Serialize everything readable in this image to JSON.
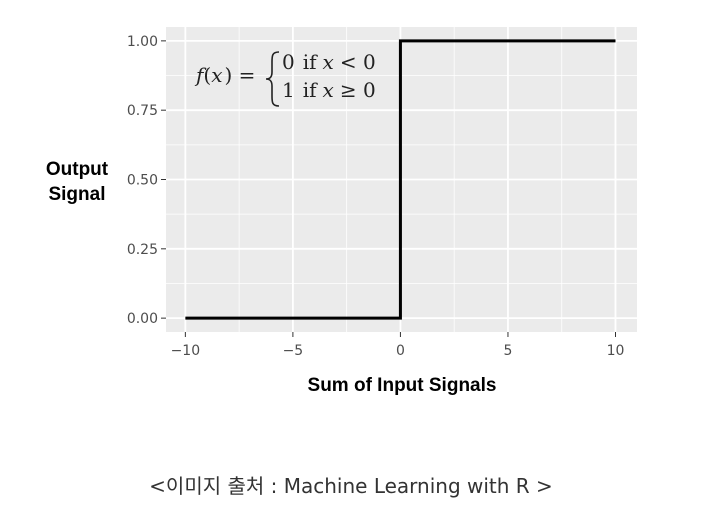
{
  "chart_data": {
    "type": "line",
    "title": "",
    "xlabel": "Sum of Input Signals",
    "ylabel": [
      "Output",
      "Signal"
    ],
    "xlim": [
      -10.9,
      11.0
    ],
    "ylim": [
      -0.05,
      1.05
    ],
    "x_ticks": [
      -10,
      -5,
      0,
      5,
      10
    ],
    "x_tick_labels": [
      "−10",
      "−5",
      "0",
      "5",
      "10"
    ],
    "y_ticks": [
      0,
      0.25,
      0.5,
      0.75,
      1.0
    ],
    "y_tick_labels": [
      "0.00",
      "0.25",
      "0.50",
      "0.75",
      "1.00"
    ],
    "grid": true,
    "background": "#ebebeb",
    "grid_color": "#ffffff",
    "line_color": "#000000",
    "series": [
      {
        "x": [
          -10,
          0,
          0,
          10
        ],
        "y": [
          0,
          0,
          1,
          1
        ]
      }
    ],
    "annotation": {
      "lhs": [
        "f",
        "(",
        "x",
        ") ="
      ],
      "cases": [
        {
          "value": "0",
          "cond_word": "if",
          "var": "x",
          "cond_rel": "< 0"
        },
        {
          "value": "1",
          "cond_word": "if",
          "var": "x",
          "cond_rel": "≥ 0"
        }
      ]
    }
  },
  "caption": "<이미지 출처 : Machine Learning with R >"
}
